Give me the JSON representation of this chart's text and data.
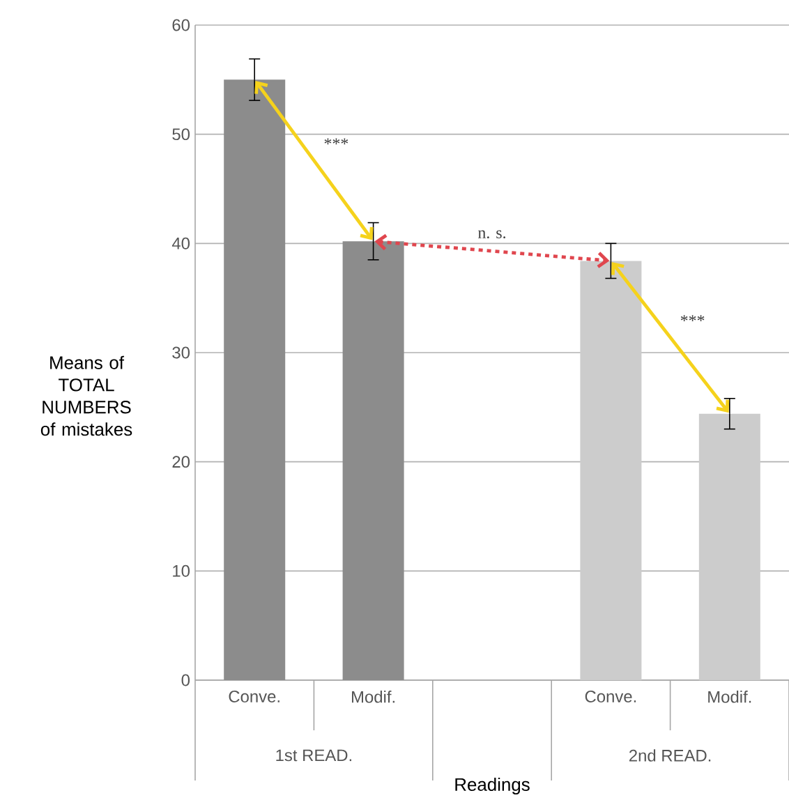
{
  "chart_data": {
    "type": "bar",
    "categories": [
      "Conve.",
      "Modif.",
      null,
      "Conve.",
      "Modif."
    ],
    "values": [
      55.0,
      40.2,
      null,
      38.4,
      24.4
    ],
    "errors": [
      1.9,
      1.7,
      null,
      1.6,
      1.4
    ],
    "colors": [
      "#8c8c8c",
      "#8c8c8c",
      "#cccccc",
      "#cccccc",
      "#cccccc"
    ],
    "ylim": [
      0,
      60
    ],
    "yticks": [
      0,
      10,
      20,
      30,
      40,
      50,
      60
    ],
    "grid": "y",
    "xlabel": "Readings",
    "ylabel": "Means of TOTAL NUMBERS of mistakes",
    "annotations": [
      "***",
      "n. s.",
      "***",
      "1st READ.",
      "2nd READ."
    ]
  }
}
